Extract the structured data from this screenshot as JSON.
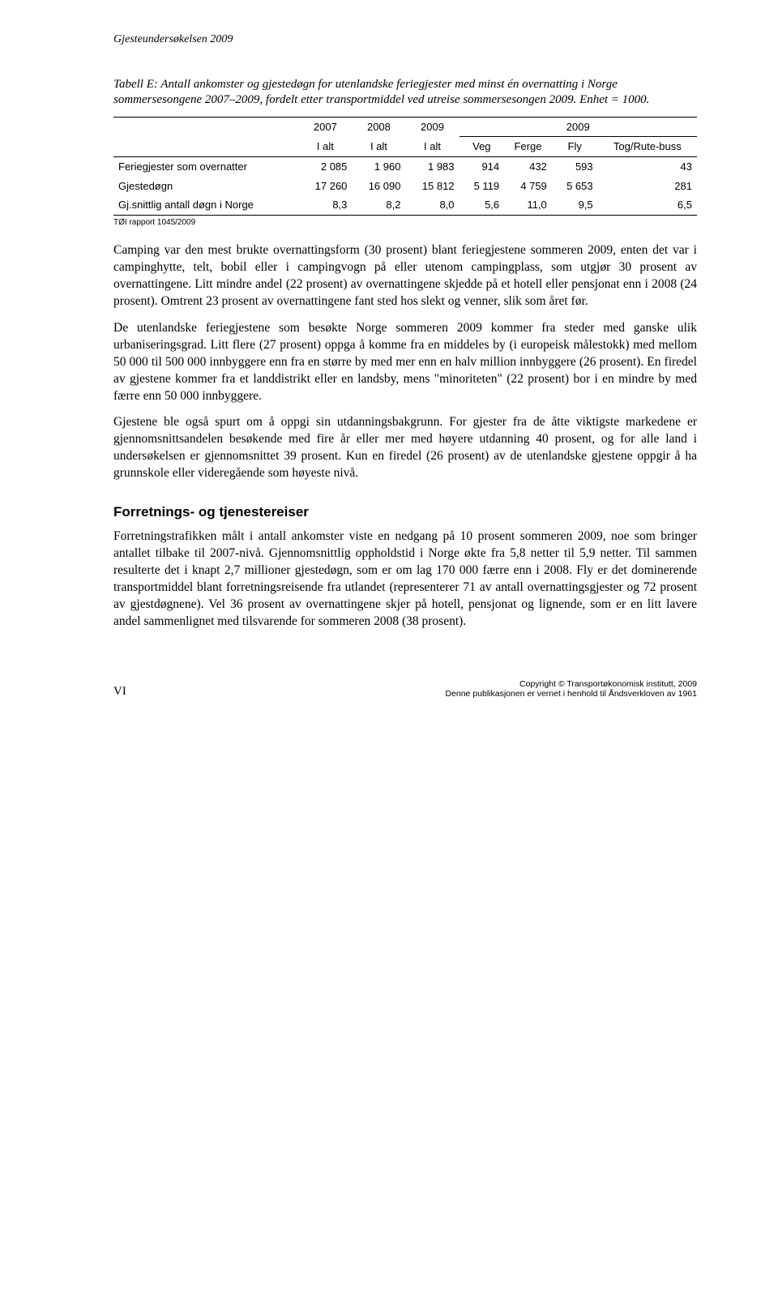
{
  "header": {
    "title": "Gjesteundersøkelsen 2009"
  },
  "table": {
    "type": "table",
    "caption": "Tabell E: Antall ankomster og gjestedøgn for utenlandske feriegjester med minst én overnatting i Norge sommersesongene 2007–2009, fordelt etter transportmiddel ved utreise sommersesongen 2009. Enhet = 1000.",
    "group_headers": [
      "2007",
      "2008",
      "2009",
      "2009"
    ],
    "sub_headers": [
      "I alt",
      "I alt",
      "I alt",
      "Veg",
      "Ferge",
      "Fly",
      "Tog/Rute-buss"
    ],
    "rows": [
      {
        "label": "Feriegjester som overnatter",
        "cells": [
          "2 085",
          "1 960",
          "1 983",
          "914",
          "432",
          "593",
          "43"
        ]
      },
      {
        "label": "Gjestedøgn",
        "cells": [
          "17 260",
          "16 090",
          "15 812",
          "5 119",
          "4 759",
          "5 653",
          "281"
        ]
      },
      {
        "label": "Gj.snittlig antall døgn i Norge",
        "cells": [
          "8,3",
          "8,2",
          "8,0",
          "5,6",
          "11,0",
          "9,5",
          "6,5"
        ]
      }
    ],
    "source": "TØI rapport 1045/2009",
    "border_color": "#000000",
    "header_font": "Arial",
    "body_font": "Arial",
    "font_size": 13
  },
  "paragraphs": {
    "p1": "Camping var den mest brukte overnattingsform (30 prosent) blant feriegjestene sommeren 2009, enten det var i campinghytte, telt, bobil eller i campingvogn på eller utenom campingplass, som utgjør 30 prosent av overnattingene. Litt mindre andel (22 prosent) av overnattingene skjedde på et hotell eller pensjonat enn i 2008 (24 prosent). Omtrent 23 prosent av overnattingene fant sted hos slekt og venner, slik som året før.",
    "p2": "De utenlandske feriegjestene som besøkte Norge sommeren 2009 kommer fra steder med ganske ulik urbaniseringsgrad. Litt flere (27 prosent) oppga å komme fra en middeles by (i europeisk målestokk) med mellom 50 000 til 500 000 innbyggere enn fra en større by med mer enn en halv million innbyggere (26 prosent). En firedel av gjestene kommer fra et landdistrikt eller en landsby, mens \"minoriteten\" (22 prosent) bor i en mindre by med færre enn 50 000 innbyggere.",
    "p3": "Gjestene ble også spurt om å oppgi sin utdanningsbakgrunn. For gjester fra de åtte viktigste markedene er gjennomsnittsandelen besøkende med fire år eller mer med høyere utdanning 40 prosent, og for alle land i undersøkelsen er gjennomsnittet 39 prosent. Kun en firedel (26 prosent) av de utenlandske gjestene oppgir å ha grunnskole eller videregående som høyeste nivå."
  },
  "section": {
    "heading": "Forretnings- og tjenestereiser",
    "p1": "Forretningstrafikken målt i antall ankomster viste en nedgang på 10 prosent sommeren 2009, noe som bringer antallet tilbake til 2007-nivå. Gjennomsnittlig oppholdstid i Norge økte fra 5,8 netter til 5,9 netter. Til sammen resulterte det i knapt 2,7 millioner gjestedøgn, som er om lag 170 000 færre enn i 2008. Fly er det dominerende transportmiddel blant forretningsreisende fra utlandet (representerer 71 av antall overnattingsgjester og 72 prosent av gjestdøgnene). Vel 36 prosent av overnattingene skjer på hotell, pensjonat og lignende, som er en litt lavere andel sammenlignet med tilsvarende for sommeren 2008 (38 prosent)."
  },
  "footer": {
    "page": "VI",
    "copyright_line1": "Copyright © Transportøkonomisk institutt, 2009",
    "copyright_line2": "Denne publikasjonen er vernet i henhold til Åndsverkloven av 1961"
  }
}
